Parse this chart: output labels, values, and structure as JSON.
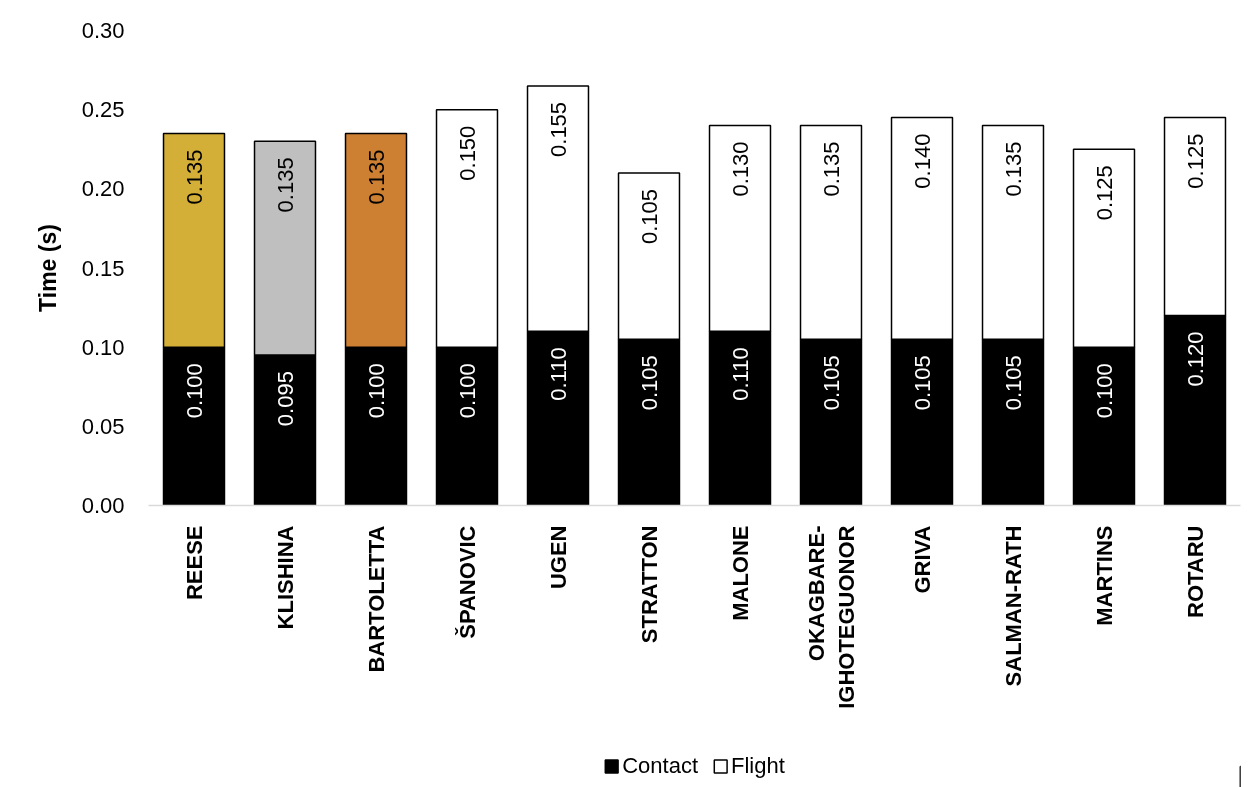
{
  "chart_data": {
    "type": "bar",
    "stacked": true,
    "ylabel": "Time (s)",
    "categories": [
      "REESE",
      "KLISHINA",
      "BARTOLETTA",
      "ŠPANOVIC",
      "UGEN",
      "STRATTON",
      "MALONE",
      "OKAGBARE-IGHOTEGUONOR",
      "GRIVA",
      "SALMAN-RATH",
      "MARTINS",
      "ROTARU"
    ],
    "series": [
      {
        "name": "Contact",
        "color": "#000000",
        "values": [
          0.1,
          0.095,
          0.1,
          0.1,
          0.11,
          0.105,
          0.11,
          0.105,
          0.105,
          0.105,
          0.1,
          0.12
        ],
        "value_labels": [
          "0.100",
          "0.095",
          "0.100",
          "0.100",
          "0.110",
          "0.105",
          "0.110",
          "0.105",
          "0.105",
          "0.105",
          "0.100",
          "0.120"
        ]
      },
      {
        "name": "Flight",
        "color": "#ffffff",
        "colors": [
          "#d4af37",
          "#bfbfbf",
          "#cd7f32",
          "#ffffff",
          "#ffffff",
          "#ffffff",
          "#ffffff",
          "#ffffff",
          "#ffffff",
          "#ffffff",
          "#ffffff",
          "#ffffff"
        ],
        "values": [
          0.135,
          0.135,
          0.135,
          0.15,
          0.155,
          0.105,
          0.13,
          0.135,
          0.14,
          0.135,
          0.125,
          0.125
        ],
        "value_labels": [
          "0.135",
          "0.135",
          "0.135",
          "0.150",
          "0.155",
          "0.105",
          "0.130",
          "0.135",
          "0.140",
          "0.135",
          "0.125",
          "0.125"
        ]
      }
    ],
    "ylim": [
      0,
      0.3
    ],
    "yticks": [
      {
        "value": 0,
        "label": "0.00"
      },
      {
        "value": 0.05,
        "label": "0.05"
      },
      {
        "value": 0.1,
        "label": "0.10"
      },
      {
        "value": 0.15,
        "label": "0.15"
      },
      {
        "value": 0.2,
        "label": "0.20"
      },
      {
        "value": 0.25,
        "label": "0.25"
      },
      {
        "value": 0.3,
        "label": "0.30"
      }
    ],
    "grid": false,
    "legend": "bottom"
  }
}
